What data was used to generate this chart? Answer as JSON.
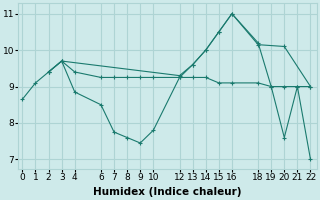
{
  "bg_color": "#ceeaea",
  "grid_color": "#aed4d4",
  "line_color": "#1a7a6e",
  "xlabel": "Humidex (Indice chaleur)",
  "lines": [
    {
      "x": [
        0,
        1,
        2,
        3,
        4,
        6,
        7,
        8,
        9,
        10,
        12,
        13,
        14,
        15,
        16,
        18,
        19,
        20,
        21,
        22
      ],
      "y": [
        8.65,
        9.1,
        9.4,
        9.7,
        9.4,
        9.25,
        9.25,
        9.25,
        9.25,
        9.25,
        9.25,
        9.25,
        9.25,
        9.1,
        9.1,
        9.1,
        9.0,
        9.0,
        9.0,
        9.0
      ]
    },
    {
      "x": [
        2,
        3,
        4,
        6,
        7,
        8,
        9,
        10,
        12,
        13,
        14,
        15,
        16,
        18,
        19,
        20,
        21,
        22
      ],
      "y": [
        9.4,
        9.7,
        8.85,
        8.5,
        7.75,
        7.6,
        7.45,
        7.8,
        9.25,
        9.6,
        10.0,
        10.5,
        11.0,
        10.2,
        9.0,
        7.6,
        9.0,
        7.0
      ]
    },
    {
      "x": [
        2,
        3,
        12,
        13,
        14,
        15,
        16,
        18,
        20,
        22
      ],
      "y": [
        9.4,
        9.7,
        9.3,
        9.6,
        10.0,
        10.5,
        11.0,
        10.15,
        10.1,
        9.0
      ]
    }
  ],
  "xlim": [
    -0.3,
    22.5
  ],
  "ylim": [
    6.75,
    11.3
  ],
  "xticks": [
    0,
    1,
    2,
    3,
    4,
    6,
    7,
    8,
    9,
    10,
    12,
    13,
    14,
    15,
    16,
    18,
    19,
    20,
    21,
    22
  ],
  "yticks": [
    7,
    8,
    9,
    10,
    11
  ],
  "tick_fontsize": 6.5,
  "xlabel_fontsize": 7.5
}
